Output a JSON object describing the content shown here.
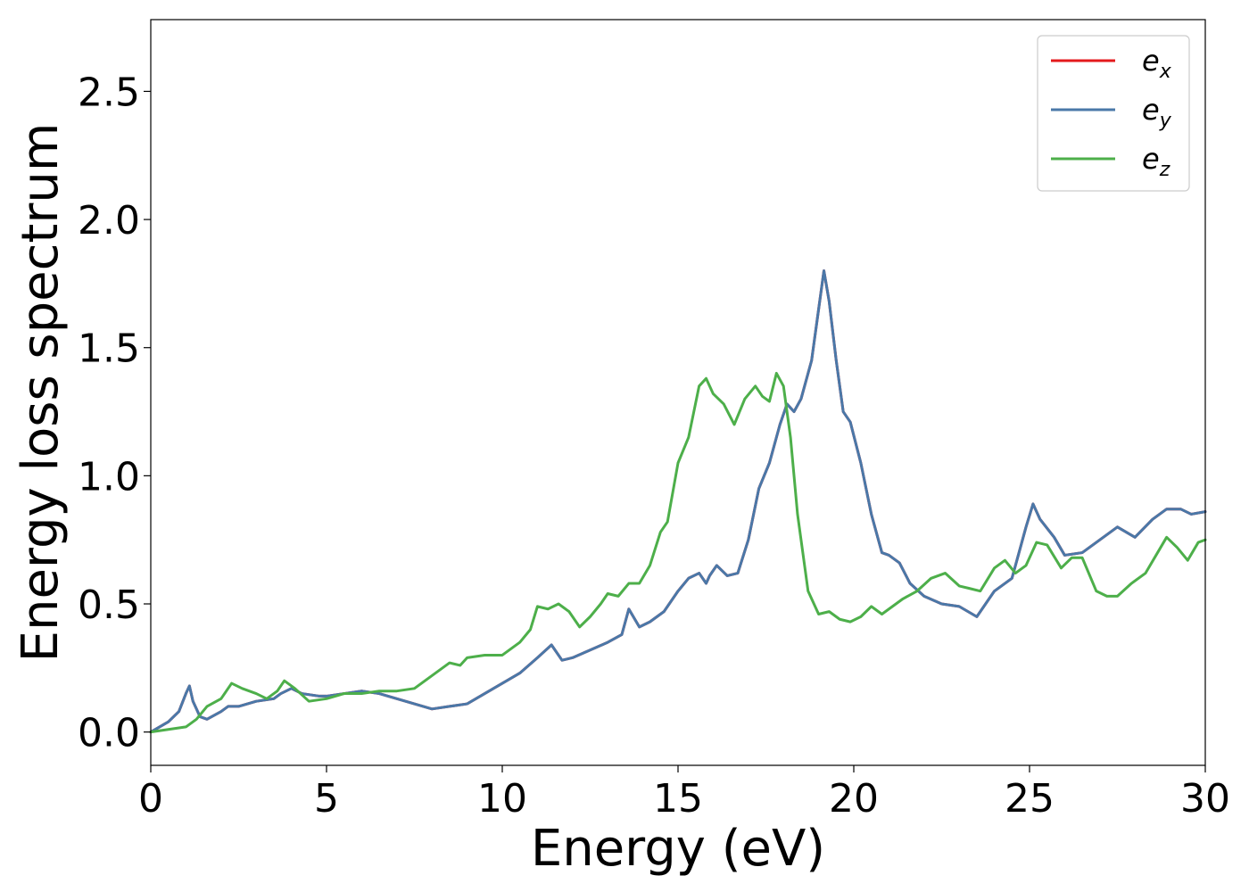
{
  "chart_data": {
    "type": "line",
    "title": "",
    "xlabel": "Energy (eV)",
    "ylabel": "Energy loss spectrum",
    "xlim": [
      0,
      30
    ],
    "ylim": [
      -0.13,
      2.78
    ],
    "x_ticks": [
      0,
      5,
      10,
      15,
      20,
      25,
      30
    ],
    "x_tick_labels": [
      "0",
      "5",
      "10",
      "15",
      "20",
      "25",
      "30"
    ],
    "y_ticks": [
      0.0,
      0.5,
      1.0,
      1.5,
      2.0,
      2.5
    ],
    "y_tick_labels": [
      "0.0",
      "0.5",
      "1.0",
      "1.5",
      "2.0",
      "2.5"
    ],
    "grid": false,
    "legend_position": "top-right",
    "series": [
      {
        "name": "e",
        "subscript": "x",
        "color": "#e41a1c",
        "x": [
          0,
          0.5,
          0.8,
          1.0,
          1.1,
          1.2,
          1.4,
          1.6,
          2.0,
          2.2,
          2.5,
          3.0,
          3.5,
          3.7,
          4.0,
          4.3,
          4.8,
          5.0,
          5.5,
          6.0,
          6.5,
          7.0,
          7.5,
          8.0,
          8.5,
          9.0,
          9.5,
          10.0,
          10.5,
          11.0,
          11.4,
          11.7,
          12.0,
          12.5,
          13.0,
          13.4,
          13.6,
          13.9,
          14.2,
          14.6,
          15.0,
          15.3,
          15.6,
          15.8,
          15.9,
          16.1,
          16.4,
          16.7,
          17.0,
          17.3,
          17.6,
          17.9,
          18.1,
          18.3,
          18.5,
          18.8,
          19.0,
          19.15,
          19.3,
          19.5,
          19.7,
          19.9,
          20.2,
          20.5,
          20.8,
          21.0,
          21.3,
          21.6,
          22.0,
          22.5,
          23.0,
          23.5,
          24.0,
          24.5,
          24.9,
          25.1,
          25.3,
          25.7,
          26.0,
          26.5,
          27.0,
          27.5,
          28.0,
          28.5,
          28.9,
          29.3,
          29.6,
          30.0
        ],
        "values": [
          0.0,
          0.04,
          0.08,
          0.15,
          0.18,
          0.12,
          0.06,
          0.05,
          0.08,
          0.1,
          0.1,
          0.12,
          0.13,
          0.15,
          0.17,
          0.15,
          0.14,
          0.14,
          0.15,
          0.16,
          0.15,
          0.13,
          0.11,
          0.09,
          0.1,
          0.11,
          0.15,
          0.19,
          0.23,
          0.29,
          0.34,
          0.28,
          0.29,
          0.32,
          0.35,
          0.38,
          0.48,
          0.41,
          0.43,
          0.47,
          0.55,
          0.6,
          0.62,
          0.58,
          0.61,
          0.65,
          0.61,
          0.62,
          0.75,
          0.95,
          1.05,
          1.2,
          1.28,
          1.25,
          1.3,
          1.45,
          1.65,
          1.8,
          1.68,
          1.45,
          1.25,
          1.21,
          1.05,
          0.85,
          0.7,
          0.69,
          0.66,
          0.58,
          0.53,
          0.5,
          0.49,
          0.45,
          0.55,
          0.6,
          0.8,
          0.89,
          0.83,
          0.76,
          0.69,
          0.7,
          0.75,
          0.8,
          0.76,
          0.83,
          0.87,
          0.87,
          0.85,
          0.86
        ]
      },
      {
        "name": "e",
        "subscript": "y",
        "color": "#4a78a8",
        "x": [
          0,
          0.5,
          0.8,
          1.0,
          1.1,
          1.2,
          1.4,
          1.6,
          2.0,
          2.2,
          2.5,
          3.0,
          3.5,
          3.7,
          4.0,
          4.3,
          4.8,
          5.0,
          5.5,
          6.0,
          6.5,
          7.0,
          7.5,
          8.0,
          8.5,
          9.0,
          9.5,
          10.0,
          10.5,
          11.0,
          11.4,
          11.7,
          12.0,
          12.5,
          13.0,
          13.4,
          13.6,
          13.9,
          14.2,
          14.6,
          15.0,
          15.3,
          15.6,
          15.8,
          15.9,
          16.1,
          16.4,
          16.7,
          17.0,
          17.3,
          17.6,
          17.9,
          18.1,
          18.3,
          18.5,
          18.8,
          19.0,
          19.15,
          19.3,
          19.5,
          19.7,
          19.9,
          20.2,
          20.5,
          20.8,
          21.0,
          21.3,
          21.6,
          22.0,
          22.5,
          23.0,
          23.5,
          24.0,
          24.5,
          24.9,
          25.1,
          25.3,
          25.7,
          26.0,
          26.5,
          27.0,
          27.5,
          28.0,
          28.5,
          28.9,
          29.3,
          29.6,
          30.0
        ],
        "values": [
          0.0,
          0.04,
          0.08,
          0.15,
          0.18,
          0.12,
          0.06,
          0.05,
          0.08,
          0.1,
          0.1,
          0.12,
          0.13,
          0.15,
          0.17,
          0.15,
          0.14,
          0.14,
          0.15,
          0.16,
          0.15,
          0.13,
          0.11,
          0.09,
          0.1,
          0.11,
          0.15,
          0.19,
          0.23,
          0.29,
          0.34,
          0.28,
          0.29,
          0.32,
          0.35,
          0.38,
          0.48,
          0.41,
          0.43,
          0.47,
          0.55,
          0.6,
          0.62,
          0.58,
          0.61,
          0.65,
          0.61,
          0.62,
          0.75,
          0.95,
          1.05,
          1.2,
          1.28,
          1.25,
          1.3,
          1.45,
          1.65,
          1.8,
          1.68,
          1.45,
          1.25,
          1.21,
          1.05,
          0.85,
          0.7,
          0.69,
          0.66,
          0.58,
          0.53,
          0.5,
          0.49,
          0.45,
          0.55,
          0.6,
          0.8,
          0.89,
          0.83,
          0.76,
          0.69,
          0.7,
          0.75,
          0.8,
          0.76,
          0.83,
          0.87,
          0.87,
          0.85,
          0.86
        ]
      },
      {
        "name": "e",
        "subscript": "z",
        "color": "#4daf4a",
        "x": [
          0,
          0.5,
          1.0,
          1.3,
          1.6,
          2.0,
          2.3,
          2.6,
          3.0,
          3.3,
          3.6,
          3.8,
          4.1,
          4.5,
          5.0,
          5.5,
          6.0,
          6.5,
          7.0,
          7.5,
          8.0,
          8.5,
          8.8,
          9.0,
          9.5,
          10.0,
          10.5,
          10.8,
          11.0,
          11.3,
          11.6,
          11.9,
          12.2,
          12.5,
          12.8,
          13.0,
          13.3,
          13.6,
          13.9,
          14.2,
          14.5,
          14.7,
          15.0,
          15.3,
          15.6,
          15.8,
          16.0,
          16.3,
          16.6,
          16.9,
          17.2,
          17.4,
          17.6,
          17.8,
          18.0,
          18.2,
          18.4,
          18.7,
          19.0,
          19.3,
          19.6,
          19.9,
          20.2,
          20.5,
          20.8,
          21.0,
          21.4,
          21.8,
          22.2,
          22.6,
          23.0,
          23.3,
          23.6,
          24.0,
          24.3,
          24.6,
          24.9,
          25.2,
          25.5,
          25.9,
          26.2,
          26.5,
          26.9,
          27.2,
          27.5,
          27.9,
          28.3,
          28.6,
          28.9,
          29.2,
          29.5,
          29.8,
          30.0
        ],
        "values": [
          0.0,
          0.01,
          0.02,
          0.05,
          0.1,
          0.13,
          0.19,
          0.17,
          0.15,
          0.13,
          0.16,
          0.2,
          0.17,
          0.12,
          0.13,
          0.15,
          0.15,
          0.16,
          0.16,
          0.17,
          0.22,
          0.27,
          0.26,
          0.29,
          0.3,
          0.3,
          0.35,
          0.4,
          0.49,
          0.48,
          0.5,
          0.47,
          0.41,
          0.45,
          0.5,
          0.54,
          0.53,
          0.58,
          0.58,
          0.65,
          0.78,
          0.82,
          1.05,
          1.15,
          1.35,
          1.38,
          1.32,
          1.28,
          1.2,
          1.3,
          1.35,
          1.31,
          1.29,
          1.4,
          1.35,
          1.15,
          0.85,
          0.55,
          0.46,
          0.47,
          0.44,
          0.43,
          0.45,
          0.49,
          0.46,
          0.48,
          0.52,
          0.55,
          0.6,
          0.62,
          0.57,
          0.56,
          0.55,
          0.64,
          0.67,
          0.62,
          0.65,
          0.74,
          0.73,
          0.64,
          0.68,
          0.68,
          0.55,
          0.53,
          0.53,
          0.58,
          0.62,
          0.69,
          0.76,
          0.72,
          0.67,
          0.74,
          0.75
        ]
      }
    ]
  }
}
